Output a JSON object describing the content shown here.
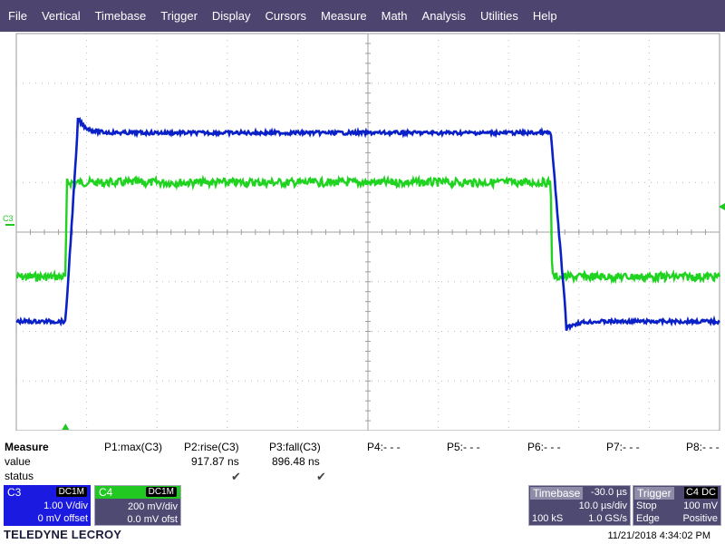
{
  "menu": [
    "File",
    "Vertical",
    "Timebase",
    "Trigger",
    "Display",
    "Cursors",
    "Measure",
    "Math",
    "Analysis",
    "Utilities",
    "Help"
  ],
  "grid": {
    "channel_marker_label": "C3"
  },
  "traces": {
    "C3_color": "#0a21c8",
    "C4_color": "#21d321",
    "C3_low_div": -1.8,
    "C3_high_div": 2.0,
    "C4_low_div": -0.9,
    "C4_high_div": 1.0,
    "rise_time_div": 0.17,
    "fall_time_div": 0.22,
    "edge_start_div": -4.3,
    "edge_end_div": 2.6
  },
  "measure": {
    "header_label": "Measure",
    "value_label": "value",
    "status_label": "status",
    "params": [
      {
        "name": "P1:max(C3)",
        "value": "",
        "status": ""
      },
      {
        "name": "P2:rise(C3)",
        "value": "917.87 ns",
        "status": "✔"
      },
      {
        "name": "P3:fall(C3)",
        "value": "896.48 ns",
        "status": "✔"
      },
      {
        "name": "P4:- - -",
        "value": "",
        "status": ""
      },
      {
        "name": "P5:- - -",
        "value": "",
        "status": ""
      },
      {
        "name": "P6:- - -",
        "value": "",
        "status": ""
      },
      {
        "name": "P7:- - -",
        "value": "",
        "status": ""
      },
      {
        "name": "P8:- - -",
        "value": "",
        "status": ""
      }
    ]
  },
  "channels": {
    "c3": {
      "label": "C3",
      "coupling": "DC1M",
      "vdiv": "1.00 V/div",
      "offset": "0 mV offset",
      "color": "#1a1ae0"
    },
    "c4": {
      "label": "C4",
      "coupling": "DC1M",
      "vdiv": "200 mV/div",
      "offset": "0.0 mV ofst",
      "color": "#21c821"
    }
  },
  "timebase": {
    "label": "Timebase",
    "delay": "-30.0 µs",
    "tdiv": "10.0 µs/div",
    "samples": "100 kS",
    "rate": "1.0 GS/s"
  },
  "trigger": {
    "label": "Trigger",
    "source": "C4 DC",
    "mode": "Stop",
    "level": "100 mV",
    "type": "Edge",
    "slope": "Positive"
  },
  "footer": {
    "logo": "TELEDYNE LECROY",
    "timestamp": "11/21/2018 4:34:02 PM"
  }
}
